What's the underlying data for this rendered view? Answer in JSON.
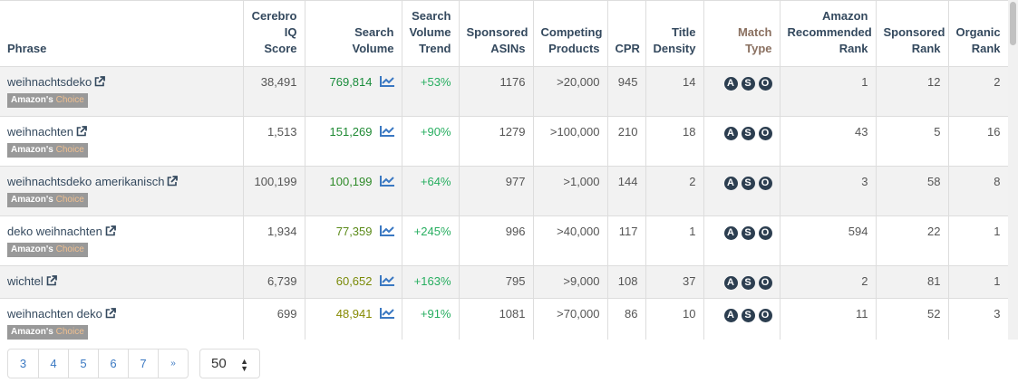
{
  "columns": [
    "Phrase",
    "Cerebro IQ Score",
    "Search Volume",
    "Search Volume Trend",
    "Sponsored ASINs",
    "Competing Products",
    "CPR",
    "Title Density",
    "Match Type",
    "Amazon Recommended Rank",
    "Sponsored Rank",
    "Organic Rank"
  ],
  "badge": {
    "prefix": "Amazon's",
    "suffix": "Choice"
  },
  "match_badges": [
    "A",
    "S",
    "O"
  ],
  "rows": [
    {
      "phrase": "weihnachtsdeko",
      "badge": true,
      "iq": "38,491",
      "volume": "769,814",
      "vol_color": "#1a8c3c",
      "trend": "+53%",
      "asins": "1176",
      "competing": ">20,000",
      "cpr": "945",
      "density": "14",
      "amazon_rank": "1",
      "sponsored_rank": "12",
      "organic_rank": "2"
    },
    {
      "phrase": "weihnachten",
      "badge": true,
      "iq": "1,513",
      "volume": "151,269",
      "vol_color": "#1f8a34",
      "trend": "+90%",
      "asins": "1279",
      "competing": ">100,000",
      "cpr": "210",
      "density": "18",
      "amazon_rank": "43",
      "sponsored_rank": "5",
      "organic_rank": "16"
    },
    {
      "phrase": "weihnachtsdeko amerikanisch",
      "badge": true,
      "iq": "100,199",
      "volume": "100,199",
      "vol_color": "#2e8a28",
      "trend": "+64%",
      "asins": "977",
      "competing": ">1,000",
      "cpr": "144",
      "density": "2",
      "amazon_rank": "3",
      "sponsored_rank": "58",
      "organic_rank": "8"
    },
    {
      "phrase": "deko weihnachten",
      "badge": true,
      "iq": "1,934",
      "volume": "77,359",
      "vol_color": "#5a8a18",
      "trend": "+245%",
      "asins": "996",
      "competing": ">40,000",
      "cpr": "117",
      "density": "1",
      "amazon_rank": "594",
      "sponsored_rank": "22",
      "organic_rank": "1"
    },
    {
      "phrase": "wichtel",
      "badge": false,
      "iq": "6,739",
      "volume": "60,652",
      "vol_color": "#7a8a08",
      "trend": "+163%",
      "asins": "795",
      "competing": ">9,000",
      "cpr": "108",
      "density": "37",
      "amazon_rank": "2",
      "sponsored_rank": "81",
      "organic_rank": "1"
    },
    {
      "phrase": "weihnachten deko",
      "badge": true,
      "iq": "699",
      "volume": "48,941",
      "vol_color": "#868a00",
      "trend": "+91%",
      "asins": "1081",
      "competing": ">70,000",
      "cpr": "86",
      "density": "10",
      "amazon_rank": "11",
      "sponsored_rank": "52",
      "organic_rank": "3"
    }
  ],
  "pagination": {
    "pages": [
      "3",
      "4",
      "5",
      "6",
      "7"
    ],
    "next": "»"
  },
  "page_size": "50"
}
